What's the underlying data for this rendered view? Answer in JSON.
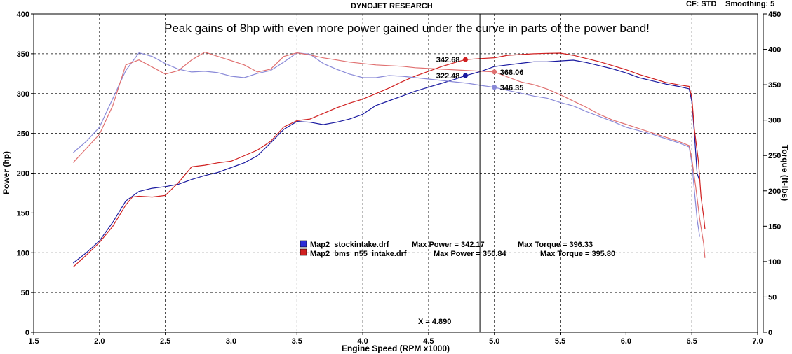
{
  "header": {
    "title": "DYNOJET RESEARCH",
    "cf": "CF: STD",
    "smoothing": "Smoothing: 5"
  },
  "chart_data": {
    "type": "line",
    "title": "Peak gains of 8hp with even more power gained under the curve in parts of the power band!",
    "xlabel": "Engine Speed (RPM x1000)",
    "ylabel": "Power (hp)",
    "y2label": "Torque (ft-lbs)",
    "xlim": [
      1.5,
      7.0
    ],
    "ylim": [
      0,
      400
    ],
    "y2lim": [
      0,
      450
    ],
    "xticks": [
      "1.5",
      "2.0",
      "2.5",
      "3.0",
      "3.5",
      "4.0",
      "4.5",
      "5.0",
      "5.5",
      "6.0",
      "6.5",
      "7.0"
    ],
    "yticks": [
      "0",
      "50",
      "100",
      "150",
      "200",
      "250",
      "300",
      "350",
      "400"
    ],
    "y2ticks": [
      "0",
      "50",
      "100",
      "150",
      "200",
      "250",
      "300",
      "350",
      "400",
      "450"
    ],
    "grid": true,
    "cursor": {
      "x": 4.89,
      "label": "X = 4.890"
    },
    "legend": [
      {
        "name": "Map2_stockintake.drf",
        "max_power_label": "Max Power = 342.17",
        "max_torque_label": "Max Torque = 396.33",
        "color": "#1a1aa0"
      },
      {
        "name": "Map2_bms_n55_intake.drf",
        "max_power_label": "Max Power = 350.84",
        "max_torque_label": "Max Torque = 395.80",
        "color": "#d02020"
      }
    ],
    "markers": [
      {
        "label": "342.68",
        "x": 4.78,
        "y": 342.7,
        "axis": "power",
        "color": "#d02020"
      },
      {
        "label": "322.48",
        "x": 4.78,
        "y": 322.5,
        "axis": "power",
        "color": "#1a1aa0"
      },
      {
        "label": "368.06",
        "x": 5.0,
        "y": 368.1,
        "axis": "torque",
        "color": "#e07070"
      },
      {
        "label": "346.35",
        "x": 5.0,
        "y": 346.4,
        "axis": "torque",
        "color": "#8a8ad8"
      }
    ],
    "series": [
      {
        "name": "Map2_stockintake.drf",
        "measure": "power",
        "axis": "left",
        "color": "#1a1aa0",
        "points": [
          [
            1.8,
            87
          ],
          [
            1.9,
            100
          ],
          [
            2.0,
            115
          ],
          [
            2.1,
            138
          ],
          [
            2.2,
            165
          ],
          [
            2.3,
            177
          ],
          [
            2.4,
            181
          ],
          [
            2.5,
            183
          ],
          [
            2.6,
            186
          ],
          [
            2.7,
            192
          ],
          [
            2.8,
            197
          ],
          [
            2.9,
            201
          ],
          [
            3.0,
            207
          ],
          [
            3.1,
            213
          ],
          [
            3.2,
            222
          ],
          [
            3.3,
            238
          ],
          [
            3.4,
            255
          ],
          [
            3.5,
            265
          ],
          [
            3.6,
            264
          ],
          [
            3.7,
            261
          ],
          [
            3.8,
            264
          ],
          [
            3.9,
            268
          ],
          [
            4.0,
            274
          ],
          [
            4.1,
            285
          ],
          [
            4.2,
            291
          ],
          [
            4.3,
            297
          ],
          [
            4.4,
            303
          ],
          [
            4.5,
            308
          ],
          [
            4.6,
            313
          ],
          [
            4.7,
            318
          ],
          [
            4.78,
            322.5
          ],
          [
            4.9,
            328
          ],
          [
            5.0,
            334
          ],
          [
            5.1,
            336
          ],
          [
            5.2,
            338
          ],
          [
            5.3,
            340
          ],
          [
            5.4,
            340
          ],
          [
            5.5,
            341
          ],
          [
            5.6,
            342
          ],
          [
            5.7,
            339
          ],
          [
            5.8,
            335
          ],
          [
            5.9,
            331
          ],
          [
            6.0,
            326
          ],
          [
            6.1,
            320
          ],
          [
            6.2,
            316
          ],
          [
            6.3,
            312
          ],
          [
            6.4,
            309
          ],
          [
            6.48,
            306
          ],
          [
            6.5,
            290
          ],
          [
            6.52,
            250
          ],
          [
            6.54,
            200
          ],
          [
            6.56,
            190
          ]
        ]
      },
      {
        "name": "Map2_bms_n55_intake.drf",
        "measure": "power",
        "axis": "left",
        "color": "#d02020",
        "points": [
          [
            1.8,
            82
          ],
          [
            1.9,
            97
          ],
          [
            2.0,
            113
          ],
          [
            2.1,
            133
          ],
          [
            2.2,
            160
          ],
          [
            2.25,
            170
          ],
          [
            2.3,
            171
          ],
          [
            2.4,
            170
          ],
          [
            2.5,
            172
          ],
          [
            2.6,
            188
          ],
          [
            2.7,
            208
          ],
          [
            2.8,
            210
          ],
          [
            2.9,
            213
          ],
          [
            3.0,
            215
          ],
          [
            3.1,
            222
          ],
          [
            3.2,
            229
          ],
          [
            3.3,
            240
          ],
          [
            3.4,
            258
          ],
          [
            3.5,
            266
          ],
          [
            3.6,
            268
          ],
          [
            3.7,
            275
          ],
          [
            3.8,
            282
          ],
          [
            3.9,
            288
          ],
          [
            4.0,
            293
          ],
          [
            4.1,
            300
          ],
          [
            4.2,
            307
          ],
          [
            4.3,
            315
          ],
          [
            4.4,
            322
          ],
          [
            4.5,
            328
          ],
          [
            4.6,
            334
          ],
          [
            4.7,
            339
          ],
          [
            4.78,
            342.7
          ],
          [
            4.9,
            344
          ],
          [
            5.0,
            345
          ],
          [
            5.1,
            348
          ],
          [
            5.2,
            349
          ],
          [
            5.3,
            350
          ],
          [
            5.4,
            350.5
          ],
          [
            5.5,
            350.8
          ],
          [
            5.6,
            348
          ],
          [
            5.7,
            344
          ],
          [
            5.8,
            340
          ],
          [
            5.9,
            335
          ],
          [
            6.0,
            330
          ],
          [
            6.1,
            324
          ],
          [
            6.2,
            319
          ],
          [
            6.3,
            314
          ],
          [
            6.4,
            311
          ],
          [
            6.48,
            309
          ],
          [
            6.5,
            295
          ],
          [
            6.52,
            255
          ],
          [
            6.55,
            215
          ],
          [
            6.57,
            170
          ],
          [
            6.59,
            145
          ],
          [
            6.6,
            130
          ]
        ]
      },
      {
        "name": "Map2_stockintake.drf",
        "measure": "torque",
        "axis": "right",
        "color": "#8a8ad8",
        "points": [
          [
            1.8,
            254
          ],
          [
            1.9,
            270
          ],
          [
            2.0,
            290
          ],
          [
            2.1,
            330
          ],
          [
            2.2,
            370
          ],
          [
            2.3,
            395
          ],
          [
            2.4,
            390
          ],
          [
            2.5,
            380
          ],
          [
            2.6,
            372
          ],
          [
            2.7,
            368
          ],
          [
            2.8,
            369
          ],
          [
            2.9,
            367
          ],
          [
            3.0,
            362
          ],
          [
            3.1,
            360
          ],
          [
            3.2,
            366
          ],
          [
            3.3,
            370
          ],
          [
            3.4,
            382
          ],
          [
            3.5,
            395
          ],
          [
            3.6,
            393
          ],
          [
            3.7,
            380
          ],
          [
            3.8,
            372
          ],
          [
            3.9,
            365
          ],
          [
            4.0,
            360
          ],
          [
            4.1,
            360
          ],
          [
            4.2,
            363
          ],
          [
            4.3,
            362
          ],
          [
            4.4,
            360
          ],
          [
            4.5,
            358
          ],
          [
            4.6,
            356
          ],
          [
            4.7,
            354
          ],
          [
            4.8,
            352
          ],
          [
            4.9,
            349
          ],
          [
            5.0,
            346.4
          ],
          [
            5.1,
            342
          ],
          [
            5.2,
            338
          ],
          [
            5.3,
            334
          ],
          [
            5.4,
            331
          ],
          [
            5.5,
            325
          ],
          [
            5.6,
            320
          ],
          [
            5.7,
            312
          ],
          [
            5.8,
            305
          ],
          [
            5.9,
            298
          ],
          [
            6.0,
            290
          ],
          [
            6.1,
            285
          ],
          [
            6.2,
            280
          ],
          [
            6.3,
            274
          ],
          [
            6.4,
            268
          ],
          [
            6.48,
            262
          ],
          [
            6.5,
            240
          ],
          [
            6.52,
            200
          ],
          [
            6.54,
            160
          ],
          [
            6.56,
            135
          ]
        ]
      },
      {
        "name": "Map2_bms_n55_intake.drf",
        "measure": "torque",
        "axis": "right",
        "color": "#e07070",
        "points": [
          [
            1.8,
            240
          ],
          [
            1.9,
            260
          ],
          [
            2.0,
            280
          ],
          [
            2.1,
            320
          ],
          [
            2.2,
            378
          ],
          [
            2.3,
            385
          ],
          [
            2.4,
            375
          ],
          [
            2.5,
            365
          ],
          [
            2.6,
            370
          ],
          [
            2.7,
            385
          ],
          [
            2.8,
            396
          ],
          [
            2.9,
            390
          ],
          [
            3.0,
            384
          ],
          [
            3.1,
            378
          ],
          [
            3.2,
            368
          ],
          [
            3.3,
            372
          ],
          [
            3.4,
            390
          ],
          [
            3.5,
            395
          ],
          [
            3.6,
            392
          ],
          [
            3.7,
            388
          ],
          [
            3.8,
            385
          ],
          [
            3.9,
            382
          ],
          [
            4.0,
            380
          ],
          [
            4.1,
            378
          ],
          [
            4.2,
            377
          ],
          [
            4.3,
            376
          ],
          [
            4.4,
            374
          ],
          [
            4.5,
            373
          ],
          [
            4.6,
            372
          ],
          [
            4.7,
            371
          ],
          [
            4.8,
            370
          ],
          [
            4.9,
            369
          ],
          [
            5.0,
            368.1
          ],
          [
            5.1,
            361
          ],
          [
            5.2,
            354
          ],
          [
            5.3,
            350
          ],
          [
            5.4,
            344
          ],
          [
            5.5,
            336
          ],
          [
            5.6,
            327
          ],
          [
            5.7,
            318
          ],
          [
            5.8,
            308
          ],
          [
            5.9,
            300
          ],
          [
            6.0,
            294
          ],
          [
            6.1,
            288
          ],
          [
            6.2,
            282
          ],
          [
            6.3,
            276
          ],
          [
            6.4,
            270
          ],
          [
            6.48,
            264
          ],
          [
            6.5,
            245
          ],
          [
            6.53,
            205
          ],
          [
            6.56,
            160
          ],
          [
            6.59,
            125
          ],
          [
            6.6,
            105
          ]
        ]
      }
    ]
  }
}
